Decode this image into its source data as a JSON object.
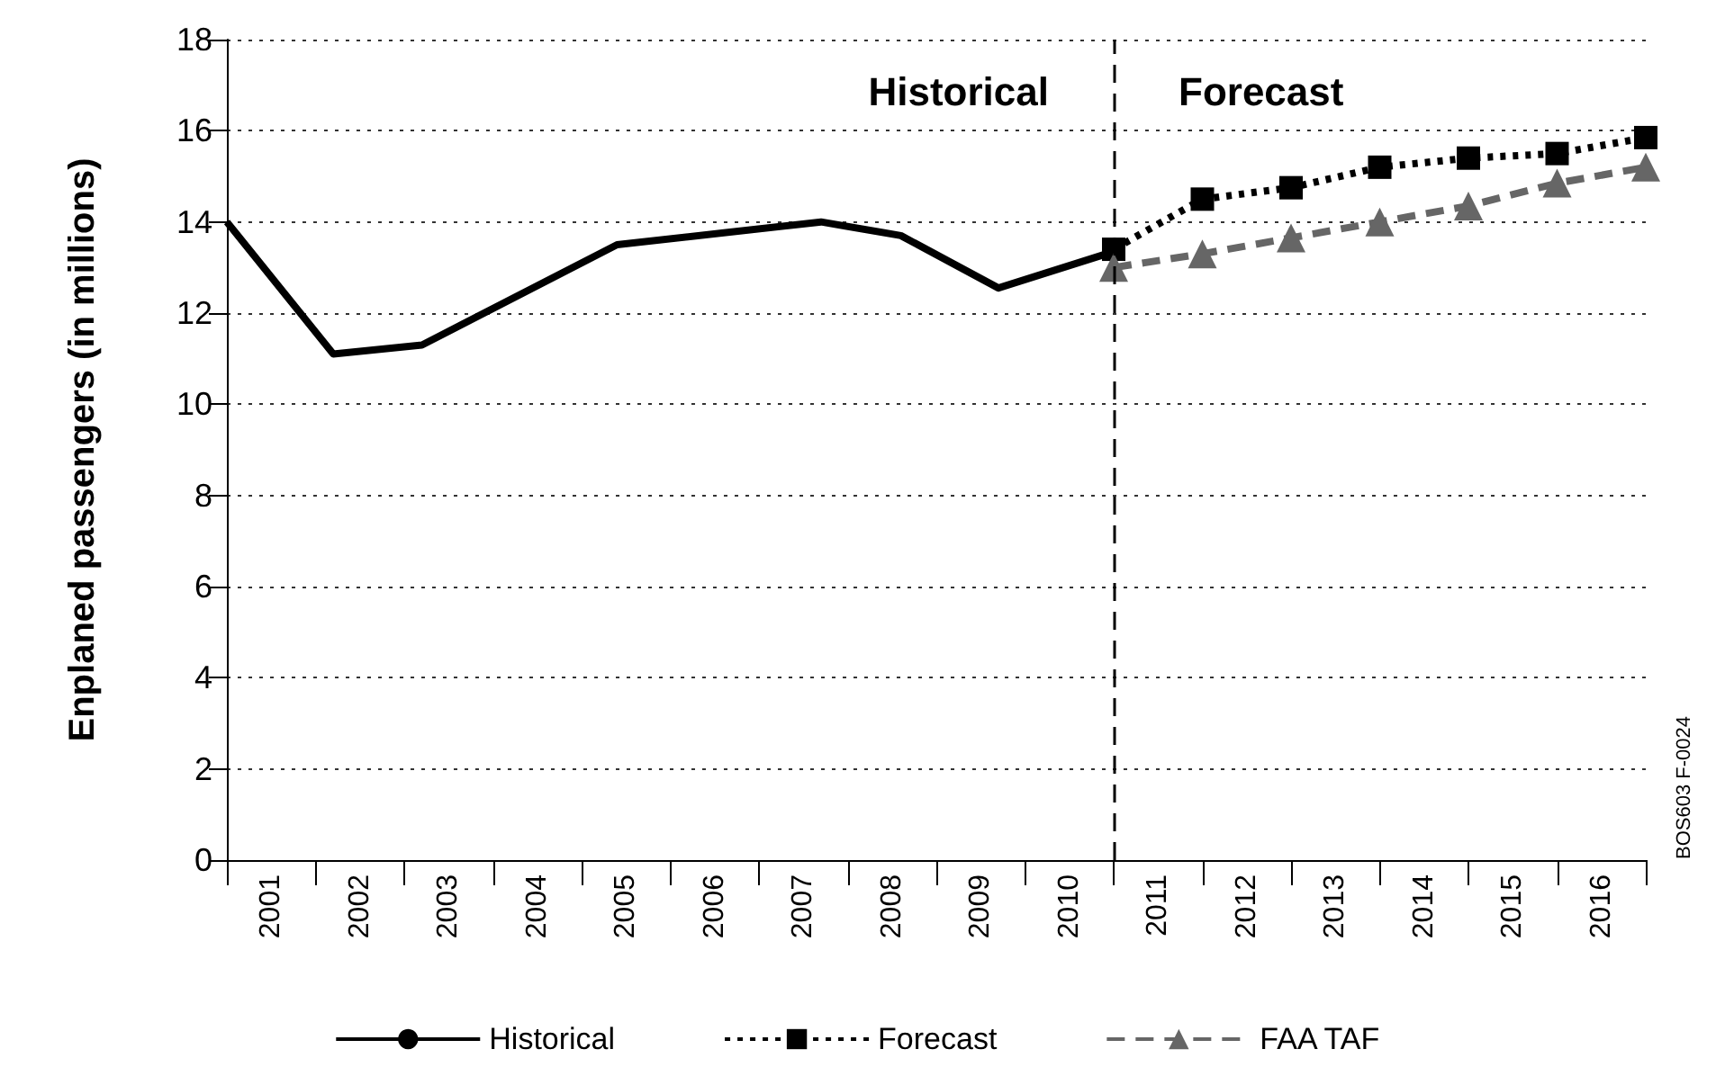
{
  "chart_data": {
    "type": "line",
    "ylabel": "Enplaned passengers (in millions)",
    "xlim": [
      2000.5,
      2016.5
    ],
    "xticks": [
      {
        "value": 2000.5,
        "label": null
      },
      {
        "value": 2001,
        "label": "2001"
      },
      {
        "value": 2001.5,
        "label": null
      },
      {
        "value": 2002,
        "label": "2002"
      },
      {
        "value": 2002.5,
        "label": null
      },
      {
        "value": 2003,
        "label": "2003"
      },
      {
        "value": 2003.5,
        "label": null
      },
      {
        "value": 2004,
        "label": "2004"
      },
      {
        "value": 2004.5,
        "label": null
      },
      {
        "value": 2005,
        "label": "2005"
      },
      {
        "value": 2005.5,
        "label": null
      },
      {
        "value": 2006,
        "label": "2006"
      },
      {
        "value": 2006.5,
        "label": null
      },
      {
        "value": 2007,
        "label": "2007"
      },
      {
        "value": 2007.5,
        "label": null
      },
      {
        "value": 2008,
        "label": "2008"
      },
      {
        "value": 2008.5,
        "label": null
      },
      {
        "value": 2009,
        "label": "2009"
      },
      {
        "value": 2009.5,
        "label": null
      },
      {
        "value": 2010,
        "label": "2010"
      },
      {
        "value": 2010.5,
        "label": null
      },
      {
        "value": 2011,
        "label": "2011"
      },
      {
        "value": 2011.5,
        "label": null
      },
      {
        "value": 2012,
        "label": "2012"
      },
      {
        "value": 2012.5,
        "label": null
      },
      {
        "value": 2013,
        "label": "2013"
      },
      {
        "value": 2013.5,
        "label": null
      },
      {
        "value": 2014,
        "label": "2014"
      },
      {
        "value": 2014.5,
        "label": null
      },
      {
        "value": 2015,
        "label": "2015"
      },
      {
        "value": 2015.5,
        "label": null
      },
      {
        "value": 2016,
        "label": "2016"
      },
      {
        "value": 2016.5,
        "label": null
      }
    ],
    "ylim": [
      0,
      18
    ],
    "yticks": [
      0,
      2,
      4,
      6,
      8,
      10,
      12,
      14,
      16,
      18
    ],
    "grid": "y",
    "legend": "bottom",
    "series": [
      {
        "name": "Historical",
        "color": "#000000",
        "line_style": "solid",
        "marker": "none",
        "x": [
          2000.5,
          2001.7,
          2002.7,
          2004.9,
          2007.2,
          2008.1,
          2009.2,
          2010.5
        ],
        "values": [
          14.0,
          11.1,
          11.3,
          13.5,
          14.0,
          13.7,
          12.55,
          13.35
        ]
      },
      {
        "name": "Forecast",
        "color": "#000000",
        "line_style": "dotted",
        "marker": "square",
        "x": [
          2010.5,
          2011.5,
          2012.5,
          2013.5,
          2014.5,
          2015.5,
          2016.5
        ],
        "values": [
          13.4,
          14.5,
          14.75,
          15.2,
          15.4,
          15.5,
          15.85
        ]
      },
      {
        "name": "FAA TAF",
        "color": "#666666",
        "line_style": "dashed",
        "marker": "triangle",
        "x": [
          2010.5,
          2011.5,
          2012.5,
          2013.5,
          2014.5,
          2015.5,
          2016.5
        ],
        "values": [
          13.0,
          13.3,
          13.65,
          14.0,
          14.35,
          14.85,
          15.2
        ]
      }
    ],
    "ref_lines": [
      {
        "axis": "x",
        "value": 2010.5,
        "label": null,
        "color": "#000000",
        "line_style": "dashed"
      }
    ],
    "annotations": [
      "Historical",
      "Forecast",
      "BOS603 F-0024"
    ]
  }
}
